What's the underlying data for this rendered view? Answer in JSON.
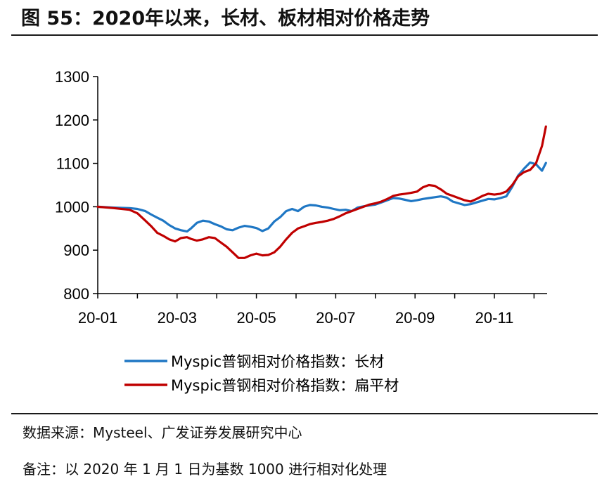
{
  "title": "图 55：2020年以来，长材、板材相对价格走势",
  "source": "数据来源：Mysteel、广发证券发展研究中心",
  "note": "备注：以 2020 年 1 月 1 日为基数 1000 进行相对化处理",
  "chart_data": {
    "type": "line",
    "title": "2020年以来，长材、板材相对价格走势",
    "xlabel": "",
    "ylabel": "",
    "x_ticks": [
      "20-01",
      "20-03",
      "20-05",
      "20-07",
      "20-09",
      "20-11"
    ],
    "y_ticks": [
      800,
      900,
      1000,
      1100,
      1200,
      1300
    ],
    "ylim": [
      800,
      1300
    ],
    "x_range_months": [
      0,
      11.3
    ],
    "legend_position": "bottom",
    "series": [
      {
        "name": "Myspic普钢相对价格指数：长材",
        "color": "#1F77C4",
        "x": [
          0,
          0.4,
          0.8,
          1.0,
          1.2,
          1.35,
          1.5,
          1.65,
          1.8,
          1.95,
          2.1,
          2.25,
          2.35,
          2.5,
          2.65,
          2.8,
          2.95,
          3.1,
          3.25,
          3.4,
          3.55,
          3.7,
          3.85,
          4.0,
          4.15,
          4.3,
          4.45,
          4.6,
          4.75,
          4.9,
          5.05,
          5.2,
          5.35,
          5.5,
          5.65,
          5.8,
          5.95,
          6.1,
          6.25,
          6.4,
          6.55,
          6.7,
          6.85,
          7.0,
          7.15,
          7.3,
          7.45,
          7.6,
          7.75,
          7.9,
          8.05,
          8.2,
          8.35,
          8.5,
          8.65,
          8.8,
          8.95,
          9.1,
          9.25,
          9.4,
          9.55,
          9.7,
          9.85,
          10.0,
          10.15,
          10.3,
          10.45,
          10.6,
          10.75,
          10.9,
          11.05,
          11.2,
          11.3
        ],
        "values": [
          1000,
          998,
          997,
          995,
          990,
          982,
          975,
          968,
          958,
          950,
          946,
          943,
          950,
          963,
          968,
          966,
          960,
          955,
          948,
          946,
          952,
          956,
          954,
          951,
          944,
          950,
          966,
          976,
          990,
          995,
          990,
          1000,
          1004,
          1003,
          1000,
          998,
          995,
          992,
          993,
          990,
          998,
          1001,
          1003,
          1005,
          1010,
          1015,
          1020,
          1019,
          1016,
          1013,
          1015,
          1018,
          1020,
          1022,
          1024,
          1021,
          1012,
          1008,
          1004,
          1006,
          1010,
          1014,
          1018,
          1017,
          1020,
          1024,
          1046,
          1072,
          1088,
          1102,
          1098,
          1083,
          1101
        ]
      },
      {
        "name": "Myspic普钢相对价格指数：扁平材",
        "color": "#C00000",
        "x": [
          0,
          0.4,
          0.8,
          1.0,
          1.2,
          1.35,
          1.5,
          1.65,
          1.8,
          1.95,
          2.1,
          2.25,
          2.35,
          2.5,
          2.65,
          2.8,
          2.95,
          3.1,
          3.25,
          3.4,
          3.55,
          3.7,
          3.85,
          4.0,
          4.15,
          4.3,
          4.45,
          4.6,
          4.75,
          4.9,
          5.05,
          5.2,
          5.35,
          5.5,
          5.65,
          5.8,
          5.95,
          6.1,
          6.25,
          6.4,
          6.55,
          6.7,
          6.85,
          7.0,
          7.15,
          7.3,
          7.45,
          7.6,
          7.75,
          7.9,
          8.05,
          8.2,
          8.35,
          8.5,
          8.65,
          8.8,
          8.95,
          9.1,
          9.25,
          9.4,
          9.55,
          9.7,
          9.85,
          10.0,
          10.15,
          10.3,
          10.45,
          10.6,
          10.75,
          10.9,
          11.05,
          11.2,
          11.3
        ],
        "values": [
          1000,
          997,
          993,
          985,
          968,
          955,
          940,
          933,
          925,
          920,
          928,
          930,
          926,
          922,
          925,
          930,
          928,
          918,
          908,
          895,
          882,
          882,
          888,
          892,
          888,
          889,
          895,
          908,
          925,
          940,
          950,
          955,
          960,
          963,
          965,
          968,
          972,
          978,
          985,
          990,
          995,
          1000,
          1005,
          1008,
          1012,
          1018,
          1025,
          1028,
          1030,
          1032,
          1035,
          1045,
          1050,
          1048,
          1040,
          1030,
          1025,
          1020,
          1015,
          1012,
          1018,
          1025,
          1030,
          1028,
          1030,
          1035,
          1050,
          1070,
          1080,
          1085,
          1100,
          1140,
          1185
        ]
      }
    ]
  }
}
